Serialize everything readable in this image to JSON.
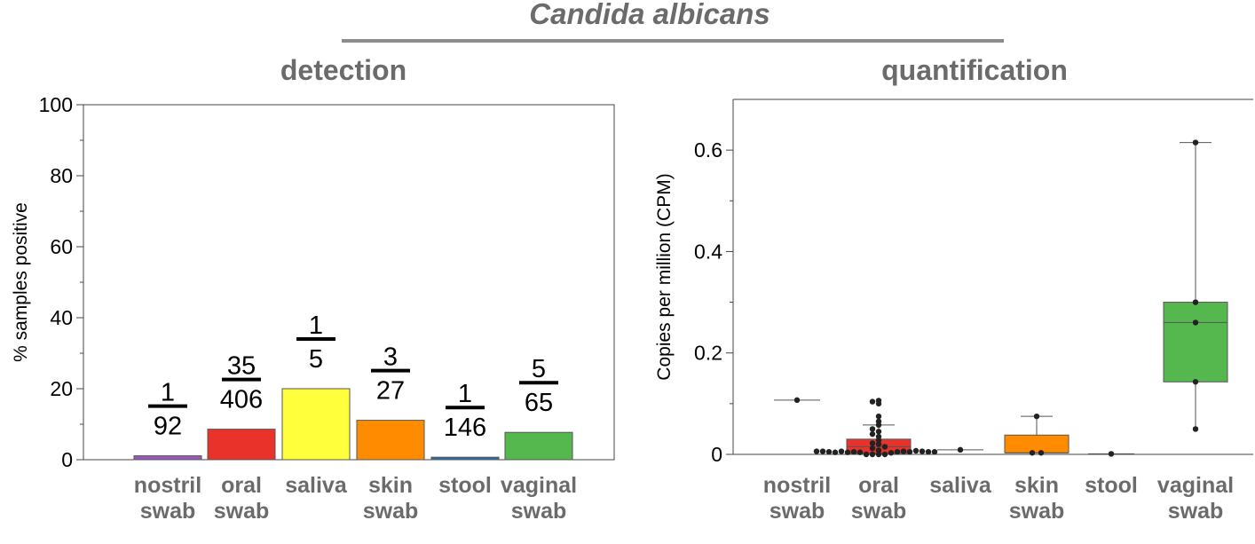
{
  "figure": {
    "title": "Candida albicans",
    "title_rule_color": "#8c8c8c",
    "title_color": "#6b6b6b"
  },
  "chart_data": [
    {
      "type": "bar",
      "title": "detection",
      "xlabel": "",
      "ylabel": "% samples positive",
      "ylim": [
        0,
        100
      ],
      "yticks": [
        "0",
        "20",
        "40",
        "60",
        "80",
        "100"
      ],
      "grid": false,
      "categories": [
        {
          "line1": "nostril",
          "line2": "swab"
        },
        {
          "line1": "oral",
          "line2": "swab"
        },
        {
          "line1": "saliva",
          "line2": ""
        },
        {
          "line1": "skin",
          "line2": "swab"
        },
        {
          "line1": "stool",
          "line2": ""
        },
        {
          "line1": "vaginal",
          "line2": "swab"
        }
      ],
      "values": [
        1.1,
        8.6,
        20.0,
        11.1,
        0.7,
        7.7
      ],
      "fractions": [
        {
          "num": "1",
          "den": "92"
        },
        {
          "num": "35",
          "den": "406"
        },
        {
          "num": "1",
          "den": "5"
        },
        {
          "num": "3",
          "den": "27"
        },
        {
          "num": "1",
          "den": "146"
        },
        {
          "num": "5",
          "den": "65"
        }
      ],
      "colors": [
        "#9b59b6",
        "#e8322a",
        "#ffff3c",
        "#ff8c00",
        "#2a6fa8",
        "#55b84f"
      ]
    },
    {
      "type": "box",
      "title": "quantification",
      "xlabel": "",
      "ylabel": "Copies per million (CPM)",
      "ylim": [
        0,
        0.7
      ],
      "yticks": [
        "0",
        "0.2",
        "0.4",
        "0.6"
      ],
      "grid": false,
      "categories": [
        {
          "line1": "nostril",
          "line2": "swab"
        },
        {
          "line1": "oral",
          "line2": "swab"
        },
        {
          "line1": "saliva",
          "line2": ""
        },
        {
          "line1": "skin",
          "line2": "swab"
        },
        {
          "line1": "stool",
          "line2": ""
        },
        {
          "line1": "vaginal",
          "line2": "swab"
        }
      ],
      "series": [
        {
          "color": "#9b59b6",
          "box": null,
          "points": [
            0.107
          ]
        },
        {
          "color": "#e8322a",
          "box": {
            "q1": 0.002,
            "median": 0.015,
            "q3": 0.03,
            "whisker_low": 0.0,
            "whisker_high": 0.058
          },
          "points": [
            0.0,
            0.0,
            0.0,
            0.0,
            0.003,
            0.004,
            0.005,
            0.005,
            0.006,
            0.004,
            0.005,
            0.006,
            0.007,
            0.008,
            0.004,
            0.006,
            0.005,
            0.005,
            0.006,
            0.005,
            0.006,
            0.012,
            0.015,
            0.02,
            0.022,
            0.028,
            0.035,
            0.04,
            0.045,
            0.05,
            0.058,
            0.065,
            0.075,
            0.1,
            0.104,
            0.106
          ]
        },
        {
          "color": "#ffff3c",
          "box": null,
          "points": [
            0.009
          ]
        },
        {
          "color": "#ff8c00",
          "box": {
            "q1": 0.003,
            "median": 0.003,
            "q3": 0.038,
            "whisker_low": 0.003,
            "whisker_high": 0.075
          },
          "points": [
            0.075,
            0.003,
            0.003
          ]
        },
        {
          "color": "#2a6fa8",
          "box": null,
          "points": [
            0.001
          ]
        },
        {
          "color": "#55b84f",
          "box": {
            "q1": 0.143,
            "median": 0.26,
            "q3": 0.3,
            "whisker_low": 0.05,
            "whisker_high": 0.615
          },
          "points": [
            0.615,
            0.3,
            0.26,
            0.143,
            0.05
          ]
        }
      ]
    }
  ]
}
